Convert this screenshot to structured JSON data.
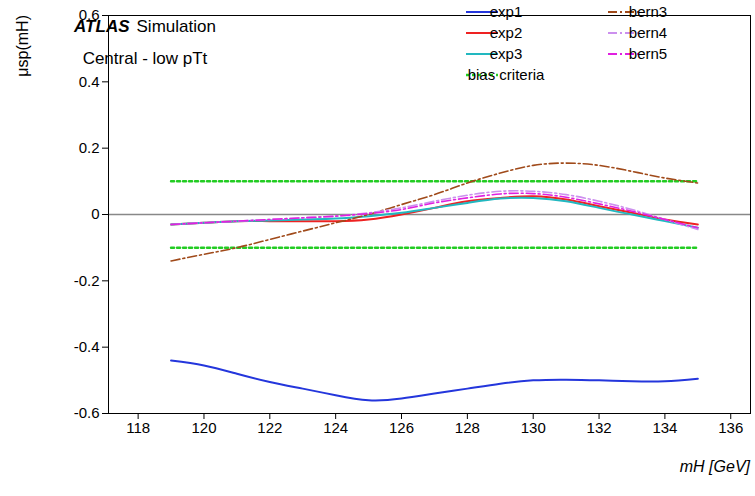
{
  "chart_data": {
    "type": "line",
    "x_label": "mH [GeV]",
    "y_label": "μsp(mH)",
    "annotations": [
      "ATLAS",
      "Simulation",
      "Central - low pTt"
    ],
    "x": [
      119,
      120,
      121,
      122,
      123,
      124,
      125,
      126,
      127,
      128,
      129,
      130,
      131,
      132,
      133,
      134,
      135
    ],
    "series": [
      {
        "name": "exp1",
        "color": "#2436dc",
        "line_style": "solid",
        "values": [
          -0.44,
          -0.455,
          -0.48,
          -0.505,
          -0.525,
          -0.545,
          -0.56,
          -0.555,
          -0.54,
          -0.525,
          -0.51,
          -0.5,
          -0.498,
          -0.5,
          -0.503,
          -0.503,
          -0.495
        ]
      },
      {
        "name": "exp2",
        "color": "#ee2222",
        "line_style": "solid",
        "values": [
          -0.03,
          -0.025,
          -0.02,
          -0.02,
          -0.02,
          -0.02,
          -0.015,
          0.0,
          0.02,
          0.04,
          0.05,
          0.055,
          0.045,
          0.025,
          0.005,
          -0.015,
          -0.03
        ]
      },
      {
        "name": "exp3",
        "color": "#22b8c0",
        "line_style": "solid",
        "values": [
          -0.03,
          -0.025,
          -0.02,
          -0.018,
          -0.015,
          -0.012,
          -0.005,
          0.005,
          0.02,
          0.035,
          0.048,
          0.05,
          0.04,
          0.02,
          0.0,
          -0.02,
          -0.04
        ]
      },
      {
        "name": "bern3",
        "color": "#a04a1a",
        "line_style": "dash-dot",
        "values": [
          -0.14,
          -0.12,
          -0.1,
          -0.075,
          -0.05,
          -0.025,
          0.0,
          0.03,
          0.06,
          0.095,
          0.125,
          0.148,
          0.155,
          0.148,
          0.13,
          0.11,
          0.095
        ]
      },
      {
        "name": "bern4",
        "color": "#cc90ee",
        "line_style": "dash-dot",
        "values": [
          -0.03,
          -0.025,
          -0.02,
          -0.015,
          -0.01,
          -0.005,
          0.005,
          0.02,
          0.04,
          0.058,
          0.07,
          0.07,
          0.06,
          0.04,
          0.015,
          -0.015,
          -0.045
        ]
      },
      {
        "name": "bern5",
        "color": "#e020e0",
        "line_style": "dash-dot",
        "values": [
          -0.03,
          -0.025,
          -0.02,
          -0.015,
          -0.01,
          -0.005,
          0.003,
          0.015,
          0.035,
          0.05,
          0.062,
          0.063,
          0.052,
          0.032,
          0.01,
          -0.015,
          -0.04
        ]
      }
    ],
    "bias_criteria": {
      "name": "bias criteria",
      "color": "#22cc22",
      "line_style": "dotted",
      "values": [
        -0.1,
        0.1
      ]
    },
    "reference_line": 0,
    "xlim": [
      117.1,
      136.6
    ],
    "xticks": [
      118,
      120,
      122,
      124,
      126,
      128,
      130,
      132,
      134,
      136
    ],
    "ylim": [
      -0.6,
      0.6
    ],
    "yticks": [
      -0.6,
      -0.4,
      -0.2,
      0,
      0.2,
      0.4,
      0.6
    ],
    "legend": "top-right",
    "grid": false
  }
}
